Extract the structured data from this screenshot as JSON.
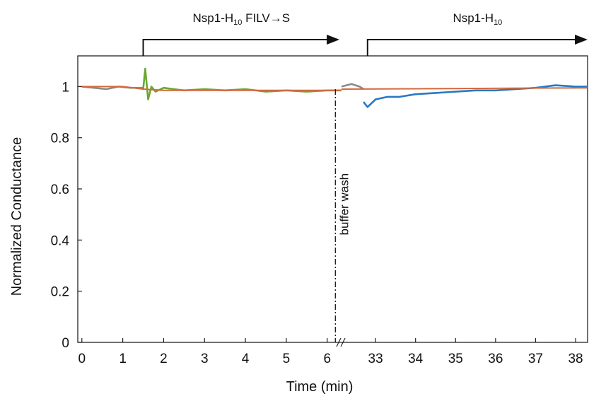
{
  "chart_data": {
    "type": "line",
    "xlabel": "Time (min)",
    "ylabel": "Normalized Conductance",
    "ylim": [
      0,
      1.12
    ],
    "yticks": [
      "0",
      "0.2",
      "0.4",
      "0.6",
      "0.8",
      "1"
    ],
    "x_segments": [
      {
        "xlim": [
          -0.1,
          6.35
        ],
        "ticks": [
          "0",
          "1",
          "2",
          "3",
          "4",
          "5",
          "6"
        ]
      },
      {
        "xlim": [
          32.15,
          38.3
        ],
        "ticks": [
          "33",
          "34",
          "35",
          "36",
          "37",
          "38"
        ]
      }
    ],
    "axis_break_at": 6.35,
    "grid": false,
    "legend": "none",
    "phase_labels": [
      {
        "base": "Nsp1-H",
        "sub": "10",
        "rest": " FILV→S",
        "x_start": 1.5,
        "x_end": 6.3,
        "segment": 0
      },
      {
        "base": "Nsp1-H",
        "sub": "10",
        "rest": "",
        "x_start": 32.8,
        "x_end": 38.3,
        "segment": 1
      }
    ],
    "annotation": {
      "text": "buffer wash",
      "x": 6.2,
      "segment": 0
    },
    "series": [
      {
        "color": "#8a8a8a",
        "segment": 0,
        "x": [
          0,
          0.3,
          0.6,
          0.9,
          1.2,
          1.5
        ],
        "y": [
          1.0,
          0.995,
          0.99,
          1.0,
          0.995,
          0.995
        ]
      },
      {
        "color": "#6aa832",
        "segment": 0,
        "x": [
          1.5,
          1.55,
          1.62,
          1.7,
          1.8,
          2.0,
          2.5,
          3.0,
          3.5,
          4.0,
          4.5,
          5.0,
          5.5,
          6.0,
          6.35
        ],
        "y": [
          0.99,
          1.07,
          0.95,
          1.0,
          0.98,
          0.995,
          0.985,
          0.99,
          0.985,
          0.99,
          0.98,
          0.985,
          0.98,
          0.985,
          0.985
        ]
      },
      {
        "color": "#8a8a8a",
        "segment": 1,
        "x": [
          32.15,
          32.4,
          32.6,
          32.7
        ],
        "y": [
          1.0,
          1.01,
          1.0,
          0.99
        ]
      },
      {
        "color": "#2a78c2",
        "segment": 1,
        "x": [
          32.7,
          32.8,
          33.0,
          33.3,
          33.6,
          34.0,
          34.5,
          35.0,
          35.5,
          36.0,
          36.5,
          37.0,
          37.5,
          38.0,
          38.3
        ],
        "y": [
          0.94,
          0.92,
          0.95,
          0.96,
          0.96,
          0.97,
          0.975,
          0.98,
          0.985,
          0.985,
          0.99,
          0.995,
          1.005,
          1.0,
          1.0
        ]
      },
      {
        "color": "#d2693c",
        "segment": 0,
        "x": [
          0,
          1.0,
          1.5,
          2.0,
          6.35
        ],
        "y": [
          1.0,
          1.0,
          0.99,
          0.985,
          0.985
        ]
      },
      {
        "color": "#d2693c",
        "segment": 1,
        "x": [
          32.15,
          38.3
        ],
        "y": [
          0.99,
          0.995
        ]
      }
    ]
  }
}
